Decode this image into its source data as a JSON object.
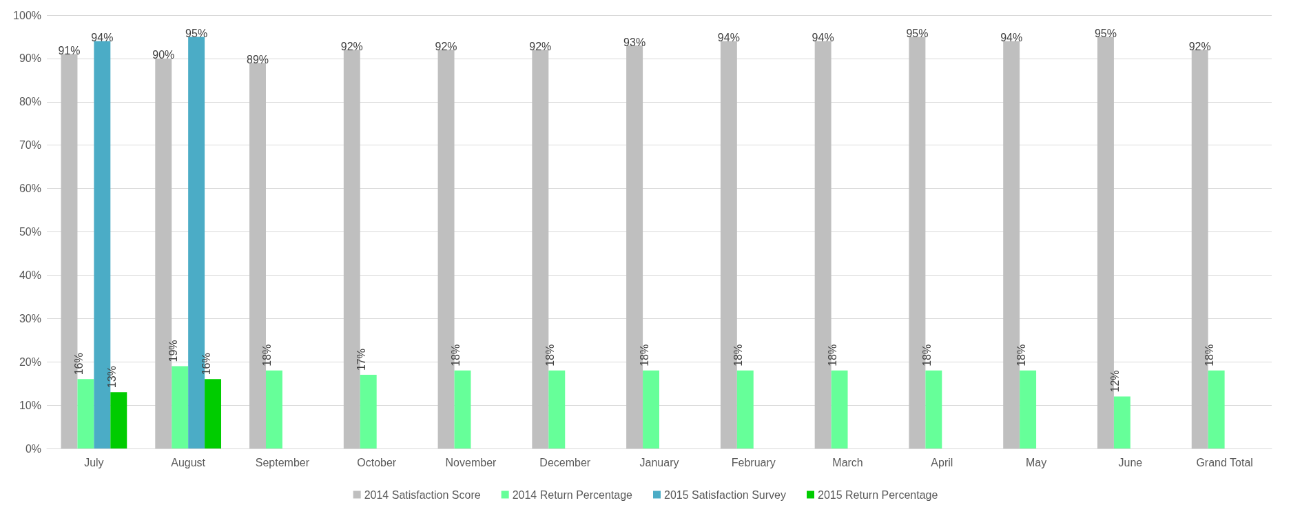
{
  "chart_data": {
    "type": "bar",
    "categories": [
      "July",
      "August",
      "September",
      "October",
      "November",
      "December",
      "January",
      "February",
      "March",
      "April",
      "May",
      "June",
      "Grand Total"
    ],
    "series": [
      {
        "name": "2014 Satisfaction Score",
        "color": "#bfbfbf",
        "values": [
          91,
          90,
          89,
          92,
          92,
          92,
          93,
          94,
          94,
          95,
          94,
          95,
          92
        ],
        "value_labels": [
          "91%",
          "90%",
          "89%",
          "92%",
          "92%",
          "92%",
          "93%",
          "94%",
          "94%",
          "95%",
          "94%",
          "95%",
          "92%"
        ]
      },
      {
        "name": "2014 Return Percentage",
        "color": "#66ff99",
        "values": [
          16,
          19,
          18,
          17,
          18,
          18,
          18,
          18,
          18,
          18,
          18,
          12,
          18
        ],
        "value_labels": [
          "16%",
          "19%",
          "18%",
          "17%",
          "18%",
          "18%",
          "18%",
          "18%",
          "18%",
          "18%",
          "18%",
          "12%",
          "18%"
        ]
      },
      {
        "name": "2015 Satisfaction Survey",
        "color": "#4bacc6",
        "values": [
          94,
          95,
          null,
          null,
          null,
          null,
          null,
          null,
          null,
          null,
          null,
          null,
          null
        ],
        "value_labels": [
          "94%",
          "95%",
          null,
          null,
          null,
          null,
          null,
          null,
          null,
          null,
          null,
          null,
          null
        ]
      },
      {
        "name": "2015 Return Percentage",
        "color": "#00cc00",
        "values": [
          13,
          16,
          null,
          null,
          null,
          null,
          null,
          null,
          null,
          null,
          null,
          null,
          null
        ],
        "value_labels": [
          "13%",
          "16%",
          null,
          null,
          null,
          null,
          null,
          null,
          null,
          null,
          null,
          null,
          null
        ]
      }
    ],
    "ylim": [
      0,
      100
    ],
    "yticks": [
      {
        "value": 0,
        "label": "0%"
      },
      {
        "value": 10,
        "label": "10%"
      },
      {
        "value": 20,
        "label": "20%"
      },
      {
        "value": 30,
        "label": "30%"
      },
      {
        "value": 40,
        "label": "40%"
      },
      {
        "value": 50,
        "label": "50%"
      },
      {
        "value": 60,
        "label": "60%"
      },
      {
        "value": 70,
        "label": "70%"
      },
      {
        "value": 80,
        "label": "80%"
      },
      {
        "value": 90,
        "label": "90%"
      },
      {
        "value": 100,
        "label": "100%"
      }
    ],
    "grid": "y",
    "legend": "bottom"
  }
}
